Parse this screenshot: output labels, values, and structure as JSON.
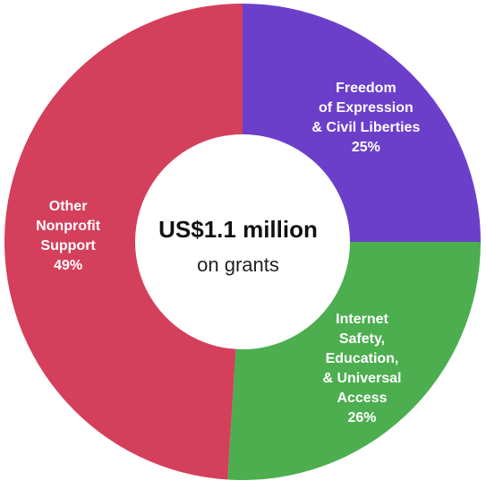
{
  "chart_data": {
    "type": "donut",
    "center_title": "US$1.1 million",
    "center_subtitle": "on grants",
    "categories": [
      "Freedom\nof Expression\n& Civil Liberties",
      "Internet\nSafety,\nEducation,\n& Universal\nAccess",
      "Other\nNonprofit\nSupport"
    ],
    "values": [
      25,
      26,
      49
    ],
    "value_labels": [
      "25%",
      "26%",
      "49%"
    ],
    "colors": [
      "#6b3fca",
      "#4cae4f",
      "#d43f5c"
    ]
  }
}
